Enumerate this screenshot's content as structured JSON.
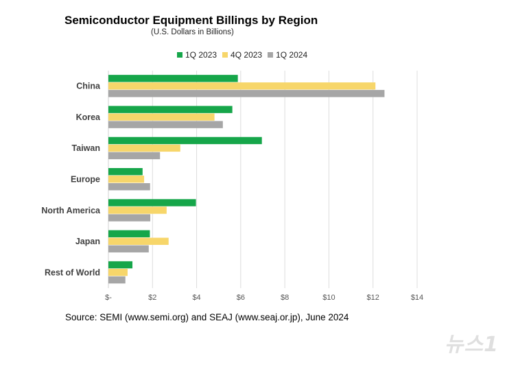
{
  "chart_data": {
    "type": "bar",
    "orientation": "horizontal",
    "title": "Semiconductor Equipment Billings by Region",
    "subtitle": "(U.S. Dollars in Billions)",
    "categories": [
      "China",
      "Korea",
      "Taiwan",
      "Europe",
      "North America",
      "Japan",
      "Rest of World"
    ],
    "series": [
      {
        "name": "1Q 2023",
        "color": "#16a64a",
        "values": [
          5.87,
          5.62,
          6.96,
          1.55,
          3.97,
          1.88,
          1.09
        ]
      },
      {
        "name": "4Q 2023",
        "color": "#f7d66a",
        "values": [
          12.11,
          4.81,
          3.26,
          1.62,
          2.64,
          2.73,
          0.87
        ]
      },
      {
        "name": "1Q 2024",
        "color": "#a6a6a6",
        "values": [
          12.52,
          5.19,
          2.34,
          1.89,
          1.9,
          1.83,
          0.77
        ]
      }
    ],
    "xlim": [
      0,
      14
    ],
    "xticks": [
      0,
      2,
      4,
      6,
      8,
      10,
      12,
      14
    ],
    "xtick_labels": [
      "$-",
      "$2",
      "$4",
      "$6",
      "$8",
      "$10",
      "$12",
      "$14"
    ],
    "grid": true,
    "legend_position": "top-center"
  },
  "source": "Source: SEMI (www.semi.org) and SEAJ (www.seaj.or.jp), June 2024",
  "watermark": "뉴스1"
}
